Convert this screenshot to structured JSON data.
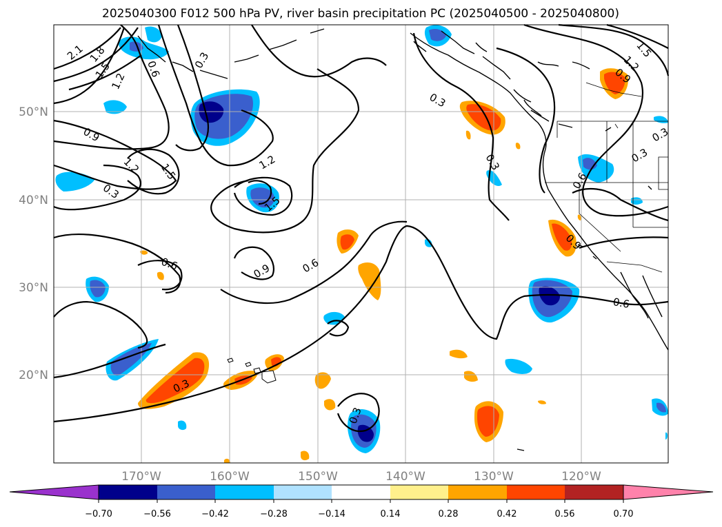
{
  "title": "2025040300 F012 500 hPa PV, river basin precipitation PC (2025040500 - 2025040800)",
  "map": {
    "lat_labels": [
      "50°N",
      "40°N",
      "30°N",
      "20°N"
    ],
    "lon_labels": [
      "170°W",
      "160°W",
      "150°W",
      "140°W",
      "130°W",
      "120°W"
    ],
    "contour_labels": [
      "2.1",
      "1.8",
      "1.5",
      "1.2",
      "0.3",
      "0.9",
      "1.2",
      "1.5",
      "0.3",
      "1.2",
      "1.5",
      "0.9",
      "0.6",
      "0.6",
      "0.3",
      "0.3",
      "0.3",
      "1.5",
      "1.2",
      "0.9",
      "0.6",
      "0.3",
      "0.6",
      "0.9",
      "0.6",
      "0.3",
      "0.3"
    ],
    "land_color": "#000000",
    "grid_color": "#b0b0b0"
  },
  "colorbar": {
    "levels": [
      "−0.70",
      "−0.56",
      "−0.42",
      "−0.28",
      "−0.14",
      "0.14",
      "0.28",
      "0.42",
      "0.56",
      "0.70"
    ],
    "colors": [
      "#9a32cd",
      "#00008b",
      "#3a5fcd",
      "#00bfff",
      "#b0e2ff",
      "#ffffff",
      "#fff08c",
      "#ffa500",
      "#ff4500",
      "#b22222",
      "#ff82ab"
    ]
  }
}
